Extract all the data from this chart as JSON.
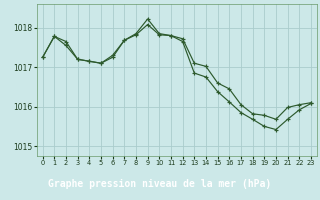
{
  "title": "Graphe pression niveau de la mer (hPa)",
  "bg_color": "#cce8e8",
  "plot_bg_color": "#cce8e8",
  "grid_color": "#aacccc",
  "line_color": "#2d5a2d",
  "label_bg_color": "#3a6e3a",
  "label_text_color": "#ffffff",
  "ylim": [
    1014.75,
    1018.6
  ],
  "yticks": [
    1015,
    1016,
    1017,
    1018
  ],
  "xticks": [
    0,
    1,
    2,
    3,
    4,
    5,
    6,
    7,
    8,
    9,
    10,
    11,
    12,
    13,
    14,
    15,
    16,
    17,
    18,
    19,
    20,
    21,
    22,
    23
  ],
  "series1_x": [
    0,
    1,
    2,
    3,
    4,
    5,
    6,
    7,
    8,
    9,
    10,
    11,
    12,
    13,
    14,
    15,
    16,
    17,
    18,
    19,
    20,
    21,
    22,
    23
  ],
  "series1_y": [
    1017.25,
    1017.78,
    1017.65,
    1017.2,
    1017.15,
    1017.1,
    1017.25,
    1017.68,
    1017.82,
    1018.08,
    1017.82,
    1017.8,
    1017.72,
    1017.1,
    1017.02,
    1016.6,
    1016.45,
    1016.05,
    1015.82,
    1015.78,
    1015.68,
    1015.98,
    1016.05,
    1016.1
  ],
  "series2_x": [
    0,
    1,
    2,
    3,
    4,
    5,
    6,
    7,
    8,
    9,
    10,
    11,
    12,
    13,
    14,
    15,
    16,
    17,
    18,
    19,
    20,
    21,
    22,
    23
  ],
  "series2_y": [
    1017.25,
    1017.78,
    1017.55,
    1017.2,
    1017.15,
    1017.1,
    1017.3,
    1017.68,
    1017.85,
    1018.22,
    1017.85,
    1017.8,
    1017.65,
    1016.85,
    1016.75,
    1016.38,
    1016.12,
    1015.85,
    1015.68,
    1015.5,
    1015.42,
    1015.68,
    1015.92,
    1016.08
  ]
}
